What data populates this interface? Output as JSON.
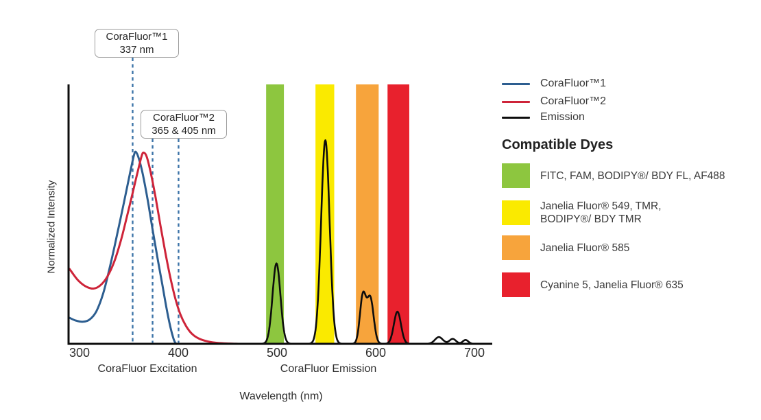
{
  "chart_data": {
    "type": "line",
    "title": "",
    "xlabel": "Wavelength (nm)",
    "ylabel": "Normalized Intensity",
    "x_ticks": [
      300,
      400,
      500,
      600,
      700
    ],
    "x_range_nm": [
      290,
      718
    ],
    "ylim": [
      0,
      1
    ],
    "grid": false,
    "section_labels": {
      "excitation": "CoraFluor Excitation",
      "emission": "CoraFluor Emission"
    },
    "series": [
      {
        "name": "CoraFluor™1",
        "kind": "excitation",
        "color": "#2D5E90",
        "points": [
          [
            290,
            0.1
          ],
          [
            296,
            0.09
          ],
          [
            303,
            0.085
          ],
          [
            310,
            0.093
          ],
          [
            317,
            0.125
          ],
          [
            324,
            0.195
          ],
          [
            331,
            0.3
          ],
          [
            338,
            0.42
          ],
          [
            345,
            0.545
          ],
          [
            351,
            0.655
          ],
          [
            355,
            0.725
          ],
          [
            357,
            0.74
          ],
          [
            360,
            0.715
          ],
          [
            364,
            0.655
          ],
          [
            369,
            0.555
          ],
          [
            374,
            0.44
          ],
          [
            379,
            0.33
          ],
          [
            384,
            0.225
          ],
          [
            388,
            0.14
          ],
          [
            392,
            0.065
          ],
          [
            395,
            0.022
          ],
          [
            397,
            0.004
          ],
          [
            398.5,
            0.0
          ]
        ]
      },
      {
        "name": "CoraFluor™2",
        "kind": "excitation",
        "color": "#CE2439",
        "points": [
          [
            290,
            0.288
          ],
          [
            298,
            0.247
          ],
          [
            306,
            0.222
          ],
          [
            314,
            0.213
          ],
          [
            321,
            0.225
          ],
          [
            328,
            0.258
          ],
          [
            335,
            0.315
          ],
          [
            342,
            0.4
          ],
          [
            348,
            0.49
          ],
          [
            354,
            0.585
          ],
          [
            359,
            0.665
          ],
          [
            363,
            0.725
          ],
          [
            365,
            0.737
          ],
          [
            368,
            0.722
          ],
          [
            372,
            0.662
          ],
          [
            377,
            0.565
          ],
          [
            382,
            0.455
          ],
          [
            387,
            0.35
          ],
          [
            392,
            0.255
          ],
          [
            397,
            0.175
          ],
          [
            402,
            0.115
          ],
          [
            408,
            0.068
          ],
          [
            414,
            0.038
          ],
          [
            421,
            0.02
          ],
          [
            430,
            0.009
          ],
          [
            441,
            0.003
          ],
          [
            452,
            0.001
          ],
          [
            462,
            0.0
          ]
        ]
      },
      {
        "name": "Emission",
        "kind": "emission",
        "color": "#0d0d0d",
        "gaussian_peaks": [
          {
            "center_nm": 499.5,
            "sigma_nm": 4.0,
            "height": 0.31
          },
          {
            "center_nm": 549.0,
            "sigma_nm": 4.3,
            "height": 0.785
          },
          {
            "center_nm": 587.0,
            "sigma_nm": 3.0,
            "height": 0.183
          },
          {
            "center_nm": 594.5,
            "sigma_nm": 3.4,
            "height": 0.176
          },
          {
            "center_nm": 622.0,
            "sigma_nm": 3.6,
            "height": 0.124
          },
          {
            "center_nm": 664.0,
            "sigma_nm": 4.0,
            "height": 0.026
          },
          {
            "center_nm": 678.0,
            "sigma_nm": 3.3,
            "height": 0.019
          },
          {
            "center_nm": 691.0,
            "sigma_nm": 2.8,
            "height": 0.015
          }
        ]
      }
    ],
    "filter_bands": [
      {
        "name": "green-filter-band",
        "nm_start": 489,
        "nm_end": 507,
        "color": "#8DC63F"
      },
      {
        "name": "yellow-filter-band",
        "nm_start": 539,
        "nm_end": 558,
        "color": "#FAEA00"
      },
      {
        "name": "orange-filter-band",
        "nm_start": 580,
        "nm_end": 603,
        "color": "#F7A43C"
      },
      {
        "name": "red-filter-band",
        "nm_start": 612,
        "nm_end": 634,
        "color": "#E8212D"
      }
    ],
    "markers": {
      "color": "#3D74A8",
      "callout1": {
        "line1": "CoraFluor™1",
        "line2": "337 nm",
        "lines_nm": [
          353.8
        ]
      },
      "callout2": {
        "line1": "CoraFluor™2",
        "line2": "365 & 405 nm",
        "lines_nm": [
          374.0,
          400.3
        ]
      }
    }
  },
  "legend": {
    "items": [
      {
        "label": "CoraFluor™1",
        "color": "#2D5E90"
      },
      {
        "label": "CoraFluor™2",
        "color": "#CE2439"
      },
      {
        "label": "Emission",
        "color": "#0d0d0d"
      }
    ]
  },
  "dyes": {
    "heading": "Compatible Dyes",
    "items": [
      {
        "color": "#8DC63F",
        "lines": [
          "FITC, FAM, BODIPY®/ BDY FL, AF488"
        ]
      },
      {
        "color": "#FAEA00",
        "lines": [
          "Janelia Fluor® 549, TMR,",
          "BODIPY®/ BDY TMR"
        ]
      },
      {
        "color": "#F7A43C",
        "lines": [
          "Janelia Fluor® 585"
        ]
      },
      {
        "color": "#E8212D",
        "lines": [
          "Cyanine 5, Janelia Fluor® 635"
        ]
      }
    ]
  }
}
